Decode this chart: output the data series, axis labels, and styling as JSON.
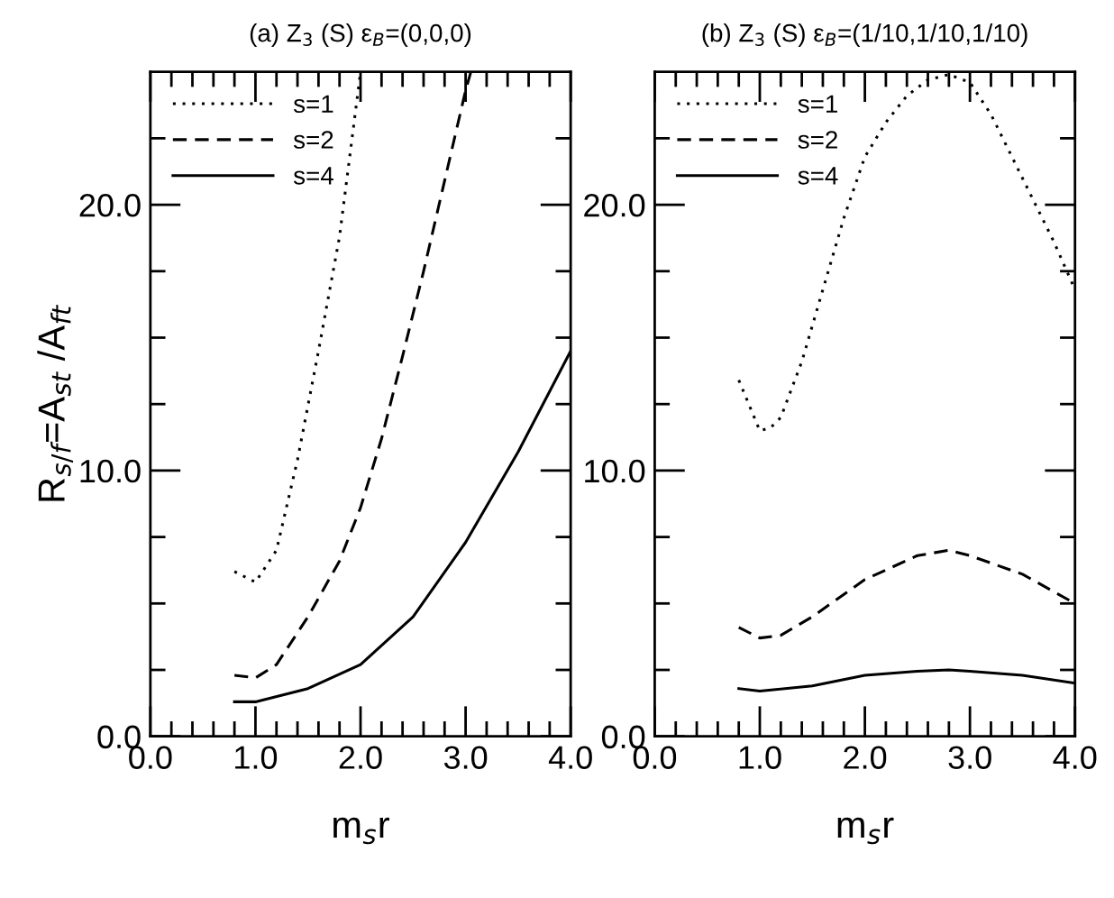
{
  "chart_data": [
    {
      "type": "line",
      "title": "(a) Z$_{3}$ (S) ε$_{B}$=(0,0,0)",
      "xlabel": "m$_{s}$r",
      "ylabel": "R$_{s/f}$=A$_{st}$ /A$_{ft}$",
      "xlim": [
        0,
        4
      ],
      "ylim": [
        0,
        25
      ],
      "xticks": [
        {
          "value": 0,
          "label": "0.0"
        },
        {
          "value": 0.2,
          "label": null
        },
        {
          "value": 0.4,
          "label": null
        },
        {
          "value": 0.6,
          "label": null
        },
        {
          "value": 0.8,
          "label": null
        },
        {
          "value": 1,
          "label": "1.0"
        },
        {
          "value": 1.2,
          "label": null
        },
        {
          "value": 1.4,
          "label": null
        },
        {
          "value": 1.6,
          "label": null
        },
        {
          "value": 1.8,
          "label": null
        },
        {
          "value": 2,
          "label": "2.0"
        },
        {
          "value": 2.2,
          "label": null
        },
        {
          "value": 2.4,
          "label": null
        },
        {
          "value": 2.6,
          "label": null
        },
        {
          "value": 2.8,
          "label": null
        },
        {
          "value": 3,
          "label": "3.0"
        },
        {
          "value": 3.2,
          "label": null
        },
        {
          "value": 3.4,
          "label": null
        },
        {
          "value": 3.6,
          "label": null
        },
        {
          "value": 3.8,
          "label": null
        },
        {
          "value": 4,
          "label": "4.0"
        }
      ],
      "yticks": [
        {
          "value": 0,
          "label": "0.0"
        },
        {
          "value": 2.5,
          "label": null
        },
        {
          "value": 5,
          "label": null
        },
        {
          "value": 7.5,
          "label": null
        },
        {
          "value": 10,
          "label": "10.0"
        },
        {
          "value": 12.5,
          "label": null
        },
        {
          "value": 15,
          "label": null
        },
        {
          "value": 17.5,
          "label": null
        },
        {
          "value": 20,
          "label": "20.0"
        },
        {
          "value": 22.5,
          "label": null
        }
      ],
      "grid": false,
      "legend": "top left",
      "marker": "none",
      "series": [
        {
          "name": "s=1",
          "color": "#000000",
          "line_style": "dotted",
          "x": [
            0.8,
            1.0,
            1.2,
            1.4,
            1.6,
            1.8,
            2.0
          ],
          "values": [
            6.2,
            5.8,
            7.0,
            10.4,
            14.5,
            18.8,
            25
          ]
        },
        {
          "name": "s=2",
          "color": "#000000",
          "line_style": "dashed",
          "x": [
            0.8,
            1.0,
            1.2,
            1.5,
            1.8,
            2.0,
            2.2,
            2.4,
            2.6,
            2.8,
            3.0,
            3.05
          ],
          "values": [
            2.3,
            2.2,
            2.7,
            4.5,
            6.6,
            8.6,
            11.2,
            14.3,
            17.5,
            20.9,
            24.3,
            25
          ]
        },
        {
          "name": "s=4",
          "color": "#000000",
          "line_style": "solid",
          "x": [
            0.8,
            1.0,
            1.5,
            2.0,
            2.5,
            3.0,
            3.5,
            4.0
          ],
          "values": [
            1.3,
            1.3,
            1.8,
            2.7,
            4.5,
            7.3,
            10.7,
            14.5
          ]
        }
      ]
    },
    {
      "type": "line",
      "title": "(b) Z$_{3}$ (S) ε$_{B}$=(1/10,1/10,1/10)",
      "xlabel": "m$_{s}$r",
      "xlim": [
        0,
        4
      ],
      "ylim": [
        0,
        25
      ],
      "xticks": [
        {
          "value": 0,
          "label": "0.0"
        },
        {
          "value": 0.2,
          "label": null
        },
        {
          "value": 0.4,
          "label": null
        },
        {
          "value": 0.6,
          "label": null
        },
        {
          "value": 0.8,
          "label": null
        },
        {
          "value": 1,
          "label": "1.0"
        },
        {
          "value": 1.2,
          "label": null
        },
        {
          "value": 1.4,
          "label": null
        },
        {
          "value": 1.6,
          "label": null
        },
        {
          "value": 1.8,
          "label": null
        },
        {
          "value": 2,
          "label": "2.0"
        },
        {
          "value": 2.2,
          "label": null
        },
        {
          "value": 2.4,
          "label": null
        },
        {
          "value": 2.6,
          "label": null
        },
        {
          "value": 2.8,
          "label": null
        },
        {
          "value": 3,
          "label": "3.0"
        },
        {
          "value": 3.2,
          "label": null
        },
        {
          "value": 3.4,
          "label": null
        },
        {
          "value": 3.6,
          "label": null
        },
        {
          "value": 3.8,
          "label": null
        },
        {
          "value": 4,
          "label": "4.0"
        }
      ],
      "yticks": [
        {
          "value": 0,
          "label": "0.0"
        },
        {
          "value": 2.5,
          "label": null
        },
        {
          "value": 5,
          "label": null
        },
        {
          "value": 7.5,
          "label": null
        },
        {
          "value": 10,
          "label": "10.0"
        },
        {
          "value": 12.5,
          "label": null
        },
        {
          "value": 15,
          "label": null
        },
        {
          "value": 17.5,
          "label": null
        },
        {
          "value": 20,
          "label": "20.0"
        },
        {
          "value": 22.5,
          "label": null
        }
      ],
      "grid": false,
      "legend": "top left",
      "marker": "none",
      "series": [
        {
          "name": "s=1",
          "color": "#000000",
          "line_style": "dotted",
          "x": [
            0.8,
            1.0,
            1.1,
            1.2,
            1.4,
            1.6,
            1.8,
            2.0,
            2.2,
            2.4,
            2.6,
            2.8,
            3.0,
            3.2,
            3.4,
            3.6,
            3.8,
            4.0
          ],
          "values": [
            13.4,
            11.5,
            11.6,
            12.0,
            14.1,
            16.8,
            19.5,
            21.8,
            23.1,
            24.1,
            24.7,
            24.9,
            24.6,
            23.4,
            21.8,
            20.2,
            18.6,
            16.8
          ]
        },
        {
          "name": "s=2",
          "color": "#000000",
          "line_style": "dashed",
          "x": [
            0.8,
            1.0,
            1.2,
            1.5,
            2.0,
            2.5,
            2.8,
            3.0,
            3.5,
            4.0
          ],
          "values": [
            4.1,
            3.7,
            3.8,
            4.5,
            5.9,
            6.8,
            7.0,
            6.8,
            6.1,
            5.0
          ]
        },
        {
          "name": "s=4",
          "color": "#000000",
          "line_style": "solid",
          "x": [
            0.8,
            1.0,
            1.5,
            2.0,
            2.5,
            2.8,
            3.0,
            3.5,
            4.0
          ],
          "values": [
            1.8,
            1.7,
            1.9,
            2.3,
            2.45,
            2.5,
            2.45,
            2.3,
            2.0
          ]
        }
      ]
    }
  ]
}
